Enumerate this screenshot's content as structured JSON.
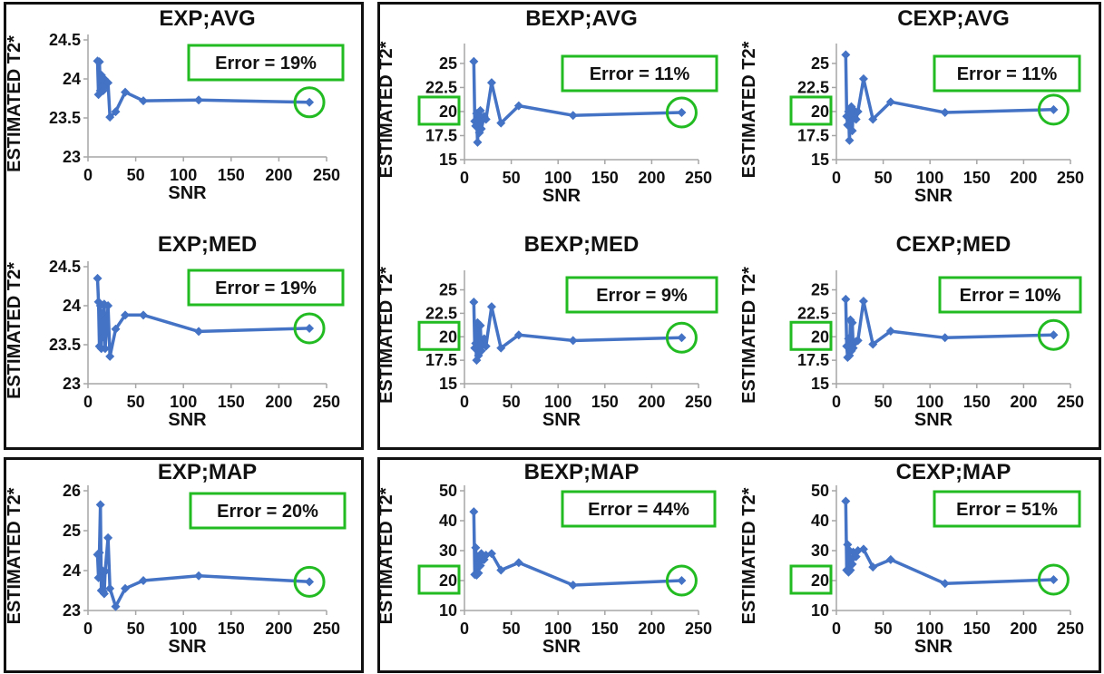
{
  "colors": {
    "series": "#4472C4",
    "highlight": "#22BB22",
    "axis": "#a6a6a6",
    "frame": "#111111"
  },
  "chart_data": [
    {
      "type": "line",
      "title": "EXP;AVG",
      "xlabel": "SNR",
      "ylabel": "ESTIMATED  T2*",
      "xlim": [
        0,
        250
      ],
      "ylim": [
        23,
        24.5
      ],
      "xticks": [
        "0",
        "50",
        "100",
        "150",
        "200",
        "250"
      ],
      "yticks": [
        "23",
        "23.5",
        "24",
        "24.5"
      ],
      "error_label": "Error = 19%",
      "highlight_y_label": false,
      "x": [
        10,
        11,
        12,
        13,
        14,
        15,
        16,
        17,
        18,
        21,
        23,
        29,
        39,
        58,
        116,
        232
      ],
      "y": [
        24.23,
        23.8,
        24.22,
        23.85,
        24.05,
        23.9,
        23.85,
        24.0,
        23.9,
        23.95,
        23.51,
        23.58,
        23.83,
        23.72,
        23.73,
        23.7
      ]
    },
    {
      "type": "line",
      "title": "BEXP;AVG",
      "xlabel": "SNR",
      "ylabel": "ESTIMATED  T2*",
      "xlim": [
        0,
        250
      ],
      "ylim": [
        15,
        26.5
      ],
      "xticks": [
        "0",
        "50",
        "100",
        "150",
        "200",
        "250"
      ],
      "yticks": [
        "15",
        "17.5",
        "20",
        "22.5",
        "25"
      ],
      "error_label": "Error = 11%",
      "highlight_y_label": true,
      "x": [
        10,
        11,
        12,
        13,
        14,
        15,
        16,
        17,
        18,
        21,
        23,
        29,
        39,
        58,
        116,
        232
      ],
      "y": [
        25.2,
        19.0,
        18.5,
        19.8,
        16.8,
        19.2,
        17.8,
        20.1,
        18.2,
        19.5,
        19.2,
        23.0,
        18.8,
        20.6,
        19.6,
        19.9
      ]
    },
    {
      "type": "line",
      "title": "CEXP;AVG",
      "xlabel": "SNR",
      "ylabel": "ESTIMATED  T2*",
      "xlim": [
        0,
        250
      ],
      "ylim": [
        15,
        26.5
      ],
      "xticks": [
        "0",
        "50",
        "100",
        "150",
        "200",
        "250"
      ],
      "yticks": [
        "15",
        "17.5",
        "20",
        "22.5",
        "25"
      ],
      "error_label": "Error = 11%",
      "highlight_y_label": true,
      "x": [
        10,
        11,
        12,
        13,
        14,
        15,
        16,
        17,
        18,
        21,
        23,
        29,
        39,
        58,
        116,
        232
      ],
      "y": [
        25.9,
        19.5,
        18.6,
        20.0,
        17.0,
        19.8,
        20.5,
        18.0,
        20.2,
        19.2,
        20.0,
        23.4,
        19.2,
        21.0,
        19.9,
        20.2
      ]
    },
    {
      "type": "line",
      "title": "EXP;MED",
      "xlabel": "SNR",
      "ylabel": "ESTIMATED  T2*",
      "xlim": [
        0,
        250
      ],
      "ylim": [
        23,
        24.5
      ],
      "xticks": [
        "0",
        "50",
        "100",
        "150",
        "200",
        "250"
      ],
      "yticks": [
        "23",
        "23.5",
        "24",
        "24.5"
      ],
      "error_label": "Error = 19%",
      "highlight_y_label": false,
      "x": [
        10,
        11,
        12,
        13,
        14,
        15,
        16,
        17,
        18,
        21,
        23,
        29,
        39,
        58,
        116,
        232
      ],
      "y": [
        24.35,
        24.05,
        23.48,
        24.0,
        23.45,
        23.9,
        23.6,
        24.02,
        23.45,
        24.0,
        23.35,
        23.7,
        23.88,
        23.88,
        23.67,
        23.71
      ]
    },
    {
      "type": "line",
      "title": "BEXP;MED",
      "xlabel": "SNR",
      "ylabel": "ESTIMATED  T2*",
      "xlim": [
        0,
        250
      ],
      "ylim": [
        15,
        26.5
      ],
      "xticks": [
        "0",
        "50",
        "100",
        "150",
        "200",
        "250"
      ],
      "yticks": [
        "15",
        "17.5",
        "20",
        "22.5",
        "25"
      ],
      "error_label": "Error = 9%",
      "highlight_y_label": true,
      "x": [
        10,
        11,
        12,
        13,
        14,
        15,
        16,
        17,
        18,
        21,
        23,
        29,
        39,
        58,
        116,
        232
      ],
      "y": [
        23.7,
        18.8,
        19.3,
        17.5,
        21.5,
        18.0,
        19.2,
        21.2,
        18.5,
        19.8,
        19.0,
        23.2,
        18.8,
        20.2,
        19.6,
        19.9
      ]
    },
    {
      "type": "line",
      "title": "CEXP;MED",
      "xlabel": "SNR",
      "ylabel": "ESTIMATED  T2*",
      "xlim": [
        0,
        250
      ],
      "ylim": [
        15,
        26.5
      ],
      "xticks": [
        "0",
        "50",
        "100",
        "150",
        "200",
        "250"
      ],
      "yticks": [
        "15",
        "17.5",
        "20",
        "22.5",
        "25"
      ],
      "error_label": "Error = 10%",
      "highlight_y_label": true,
      "x": [
        10,
        11,
        12,
        13,
        14,
        15,
        16,
        17,
        18,
        21,
        23,
        29,
        39,
        58,
        116,
        232
      ],
      "y": [
        24.0,
        19.0,
        17.8,
        19.8,
        18.0,
        21.8,
        18.5,
        21.5,
        18.8,
        19.5,
        19.6,
        23.8,
        19.2,
        20.6,
        19.9,
        20.2
      ]
    },
    {
      "type": "line",
      "title": "EXP;MAP",
      "xlabel": "SNR",
      "ylabel": "ESTIMATED  T2*",
      "xlim": [
        0,
        250
      ],
      "ylim": [
        23,
        26
      ],
      "xticks": [
        "0",
        "50",
        "100",
        "150",
        "200",
        "250"
      ],
      "yticks": [
        "23",
        "24",
        "25",
        "26"
      ],
      "error_label": "Error = 20%",
      "highlight_y_label": false,
      "x": [
        10,
        11,
        12,
        13,
        14,
        15,
        16,
        17,
        18,
        21,
        23,
        29,
        39,
        58,
        116,
        232
      ],
      "y": [
        24.4,
        23.82,
        24.45,
        25.65,
        23.5,
        24.0,
        23.48,
        23.42,
        23.98,
        24.82,
        23.55,
        23.1,
        23.55,
        23.75,
        23.87,
        23.72
      ]
    },
    {
      "type": "line",
      "title": "BEXP;MAP",
      "xlabel": "SNR",
      "ylabel": "ESTIMATED  T2*",
      "xlim": [
        0,
        250
      ],
      "ylim": [
        10,
        50
      ],
      "xticks": [
        "0",
        "50",
        "100",
        "150",
        "200",
        "250"
      ],
      "yticks": [
        "10",
        "20",
        "30",
        "40",
        "50"
      ],
      "error_label": "Error = 44%",
      "highlight_y_label": true,
      "x": [
        10,
        11,
        12,
        13,
        14,
        15,
        16,
        17,
        18,
        21,
        23,
        29,
        39,
        58,
        116,
        232
      ],
      "y": [
        43.0,
        22.0,
        31.0,
        21.8,
        28.0,
        22.5,
        26.0,
        25.0,
        29.0,
        27.0,
        28.5,
        29.0,
        23.5,
        26.0,
        18.5,
        20.0
      ]
    },
    {
      "type": "line",
      "title": "CEXP;MAP",
      "xlabel": "SNR",
      "ylabel": "ESTIMATED  T2*",
      "xlim": [
        0,
        250
      ],
      "ylim": [
        10,
        50
      ],
      "xticks": [
        "0",
        "50",
        "100",
        "150",
        "200",
        "250"
      ],
      "yticks": [
        "10",
        "20",
        "30",
        "40",
        "50"
      ],
      "error_label": "Error = 51%",
      "highlight_y_label": true,
      "x": [
        10,
        11,
        12,
        13,
        14,
        15,
        16,
        17,
        18,
        21,
        23,
        29,
        39,
        58,
        116,
        232
      ],
      "y": [
        46.5,
        23.5,
        32.0,
        22.8,
        30.0,
        23.5,
        27.0,
        25.5,
        29.5,
        28.0,
        30.0,
        30.5,
        24.5,
        27.0,
        19.0,
        20.3
      ]
    }
  ]
}
